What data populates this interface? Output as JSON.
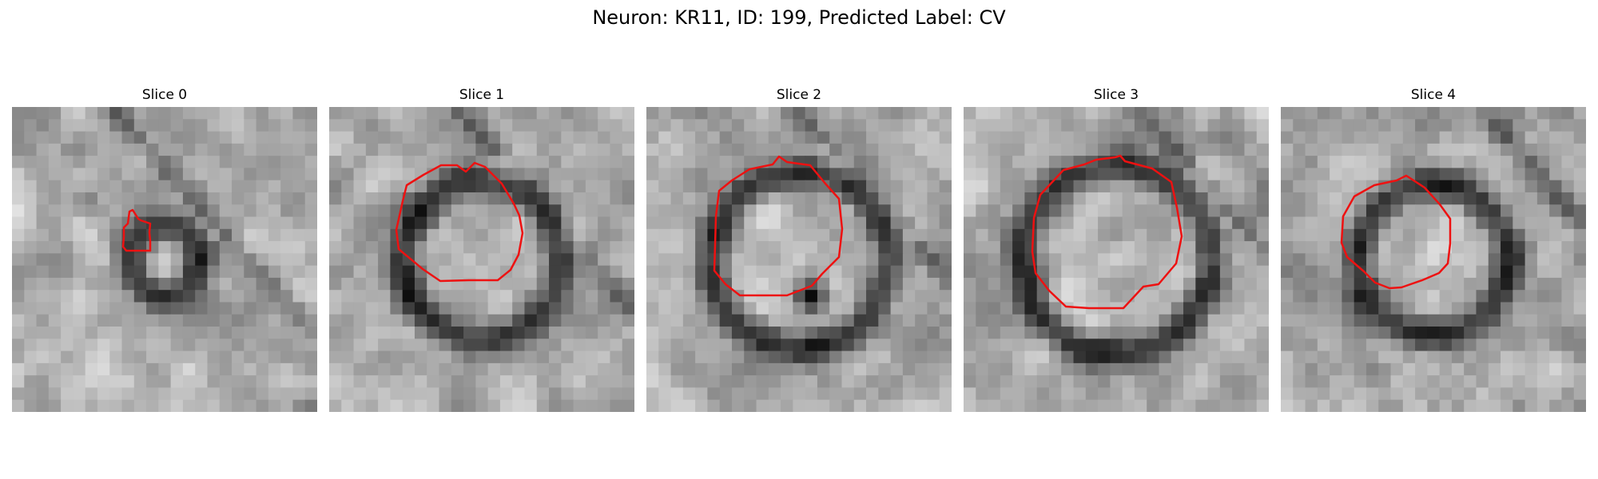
{
  "figure": {
    "title": "Neuron: KR11, ID: 199, Predicted Label: CV",
    "contour_color": "#ee1111"
  },
  "panels": [
    {
      "title": "Slice 0",
      "seed": 11,
      "membrane_radius": 0.23,
      "hole": false
    },
    {
      "title": "Slice 1",
      "seed": 23,
      "membrane_radius": 0.52,
      "hole": false
    },
    {
      "title": "Slice 2",
      "seed": 37,
      "membrane_radius": 0.58,
      "hole": true
    },
    {
      "title": "Slice 3",
      "seed": 51,
      "membrane_radius": 0.62,
      "hole": false
    },
    {
      "title": "Slice 4",
      "seed": 67,
      "membrane_radius": 0.5,
      "hole": false
    }
  ]
}
